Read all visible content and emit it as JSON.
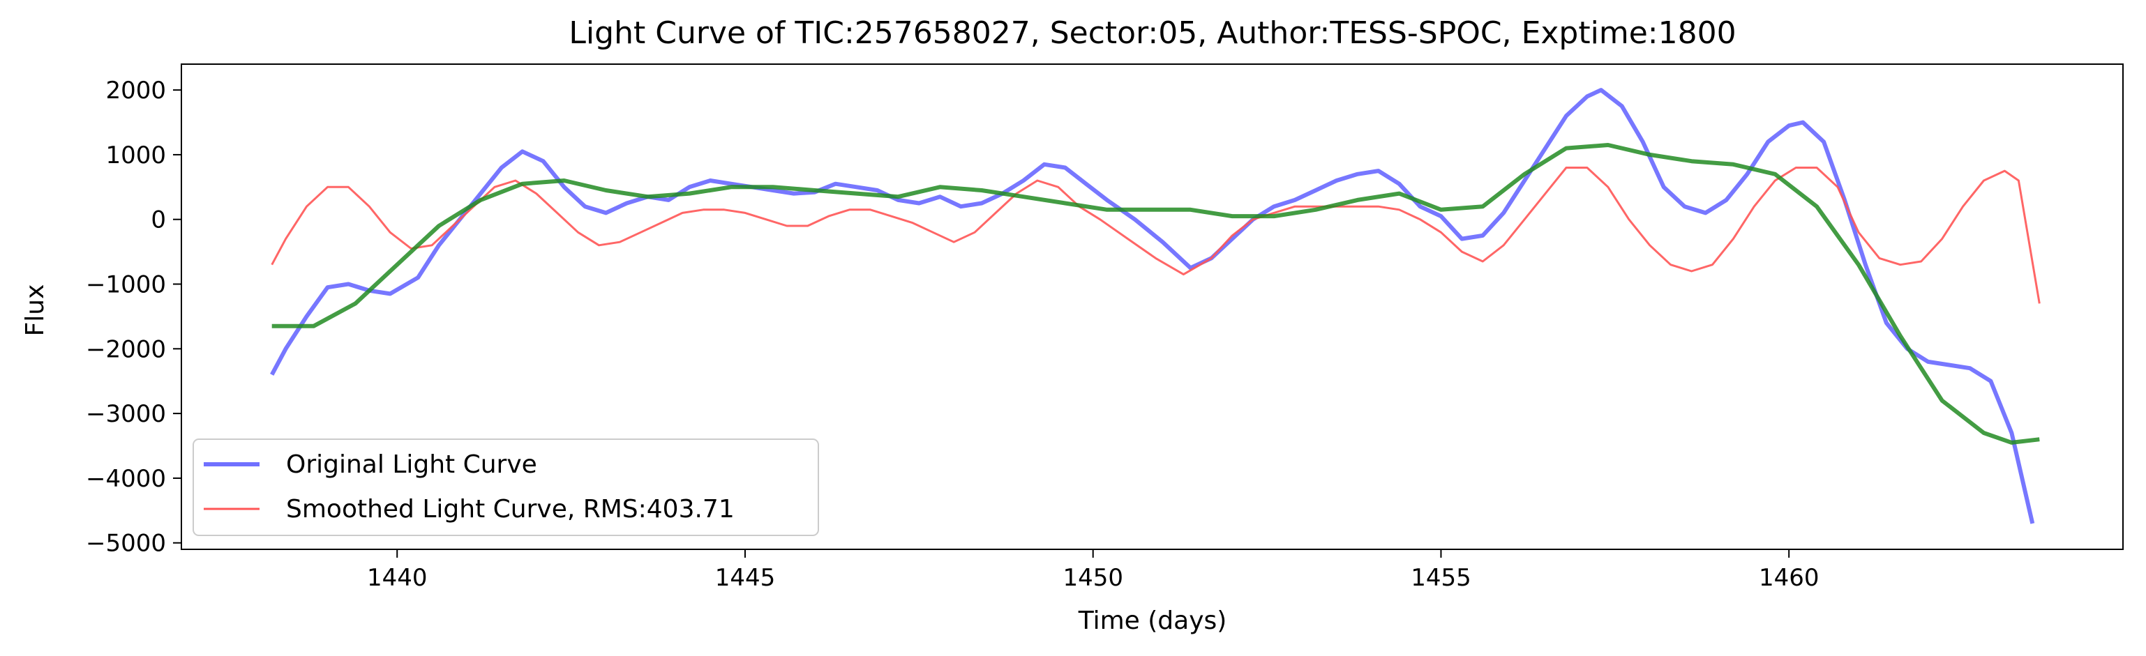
{
  "chart_data": {
    "type": "line",
    "title": "Light Curve of TIC:257658027, Sector:05, Author:TESS-SPOC, Exptime:1800",
    "xlabel": "Time (days)",
    "ylabel": "Flux",
    "xlim": [
      1436.9,
      1464.8
    ],
    "ylim": [
      -5100,
      2400
    ],
    "xticks": [
      1440,
      1445,
      1450,
      1455,
      1460
    ],
    "xtick_labels": [
      "1440",
      "1445",
      "1450",
      "1455",
      "1460"
    ],
    "yticks": [
      2000,
      1000,
      0,
      -1000,
      -2000,
      -3000,
      -4000,
      -5000
    ],
    "ytick_labels": [
      "2000",
      "1000",
      "0",
      "−1000",
      "−2000",
      "−3000",
      "−4000",
      "−5000"
    ],
    "grid": false,
    "legend": {
      "placement": "lower-left",
      "entries": [
        "Original Light Curve",
        "Smoothed Light Curve, RMS:403.71"
      ]
    },
    "series": [
      {
        "name": "Original Light Curve",
        "color": "#7070ff",
        "x": [
          1438.2,
          1438.4,
          1438.7,
          1439.0,
          1439.3,
          1439.6,
          1439.9,
          1440.3,
          1440.6,
          1440.9,
          1441.2,
          1441.5,
          1441.8,
          1442.1,
          1442.4,
          1442.7,
          1443.0,
          1443.3,
          1443.6,
          1443.9,
          1444.2,
          1444.5,
          1444.8,
          1445.1,
          1445.4,
          1445.7,
          1446.0,
          1446.3,
          1446.6,
          1446.9,
          1447.2,
          1447.5,
          1447.8,
          1448.1,
          1448.4,
          1448.7,
          1449.0,
          1449.3,
          1449.6,
          1449.9,
          1450.2,
          1450.6,
          1451.0,
          1451.4,
          1451.7,
          1452.0,
          1452.3,
          1452.6,
          1452.9,
          1453.2,
          1453.5,
          1453.8,
          1454.1,
          1454.4,
          1454.7,
          1455.0,
          1455.3,
          1455.6,
          1455.9,
          1456.2,
          1456.5,
          1456.8,
          1457.1,
          1457.3,
          1457.6,
          1457.9,
          1458.2,
          1458.5,
          1458.8,
          1459.1,
          1459.4,
          1459.7,
          1460.0,
          1460.2,
          1460.5,
          1460.8,
          1461.1,
          1461.4,
          1461.7,
          1462.0,
          1462.3,
          1462.6,
          1462.9,
          1463.2,
          1463.5
        ],
        "y": [
          -2400,
          -2000,
          -1500,
          -1050,
          -1000,
          -1100,
          -1150,
          -900,
          -400,
          0,
          400,
          800,
          1050,
          900,
          500,
          200,
          100,
          250,
          350,
          300,
          500,
          600,
          550,
          500,
          450,
          400,
          420,
          550,
          500,
          450,
          300,
          250,
          350,
          200,
          250,
          400,
          600,
          850,
          800,
          550,
          300,
          0,
          -350,
          -750,
          -600,
          -300,
          0,
          200,
          300,
          450,
          600,
          700,
          750,
          550,
          200,
          50,
          -300,
          -250,
          100,
          600,
          1100,
          1600,
          1900,
          2000,
          1750,
          1200,
          500,
          200,
          100,
          300,
          700,
          1200,
          1450,
          1500,
          1200,
          300,
          -700,
          -1600,
          -2000,
          -2200,
          -2250,
          -2300,
          -2500,
          -3300,
          -4700
        ]
      },
      {
        "name": "Smoothed Light Curve, RMS:403.71",
        "color": "#ff5555",
        "x": [
          1438.2,
          1438.4,
          1438.7,
          1439.0,
          1439.3,
          1439.6,
          1439.9,
          1440.2,
          1440.5,
          1440.8,
          1441.1,
          1441.4,
          1441.7,
          1442.0,
          1442.3,
          1442.6,
          1442.9,
          1443.2,
          1443.5,
          1443.8,
          1444.1,
          1444.4,
          1444.7,
          1445.0,
          1445.3,
          1445.6,
          1445.9,
          1446.2,
          1446.5,
          1446.8,
          1447.1,
          1447.4,
          1447.7,
          1448.0,
          1448.3,
          1448.6,
          1448.9,
          1449.2,
          1449.5,
          1449.8,
          1450.1,
          1450.5,
          1450.9,
          1451.3,
          1451.7,
          1452.0,
          1452.3,
          1452.6,
          1452.9,
          1453.2,
          1453.5,
          1453.8,
          1454.1,
          1454.4,
          1454.7,
          1455.0,
          1455.3,
          1455.6,
          1455.9,
          1456.2,
          1456.5,
          1456.8,
          1457.1,
          1457.4,
          1457.7,
          1458.0,
          1458.3,
          1458.6,
          1458.9,
          1459.2,
          1459.5,
          1459.8,
          1460.1,
          1460.4,
          1460.7,
          1461.0,
          1461.3,
          1461.6,
          1461.9,
          1462.2,
          1462.5,
          1462.8,
          1463.1,
          1463.3,
          1463.6
        ],
        "y": [
          -700,
          -300,
          200,
          500,
          500,
          200,
          -200,
          -450,
          -400,
          -100,
          200,
          500,
          600,
          400,
          100,
          -200,
          -400,
          -350,
          -200,
          -50,
          100,
          150,
          150,
          100,
          0,
          -100,
          -100,
          50,
          150,
          150,
          50,
          -50,
          -200,
          -350,
          -200,
          100,
          400,
          600,
          500,
          200,
          0,
          -300,
          -600,
          -850,
          -600,
          -250,
          0,
          100,
          200,
          200,
          200,
          200,
          200,
          150,
          0,
          -200,
          -500,
          -650,
          -400,
          0,
          400,
          800,
          800,
          500,
          0,
          -400,
          -700,
          -800,
          -700,
          -300,
          200,
          600,
          800,
          800,
          500,
          -200,
          -600,
          -700,
          -650,
          -300,
          200,
          600,
          750,
          600,
          -1300
        ]
      },
      {
        "name": "",
        "color": "#228b22",
        "x": [
          1438.2,
          1438.8,
          1439.4,
          1440.0,
          1440.6,
          1441.2,
          1441.8,
          1442.4,
          1443.0,
          1443.6,
          1444.2,
          1444.8,
          1445.4,
          1446.0,
          1446.6,
          1447.2,
          1447.8,
          1448.4,
          1449.0,
          1449.6,
          1450.2,
          1450.8,
          1451.4,
          1452.0,
          1452.6,
          1453.2,
          1453.8,
          1454.4,
          1455.0,
          1455.6,
          1456.2,
          1456.8,
          1457.4,
          1458.0,
          1458.6,
          1459.2,
          1459.8,
          1460.4,
          1461.0,
          1461.6,
          1462.2,
          1462.8,
          1463.2,
          1463.6
        ],
        "y": [
          -1650,
          -1650,
          -1300,
          -700,
          -100,
          300,
          550,
          600,
          450,
          350,
          400,
          500,
          500,
          450,
          400,
          350,
          500,
          450,
          350,
          250,
          150,
          150,
          150,
          50,
          50,
          150,
          300,
          400,
          150,
          200,
          700,
          1100,
          1150,
          1000,
          900,
          850,
          700,
          200,
          -700,
          -1800,
          -2800,
          -3300,
          -3450,
          -3400
        ]
      }
    ]
  }
}
